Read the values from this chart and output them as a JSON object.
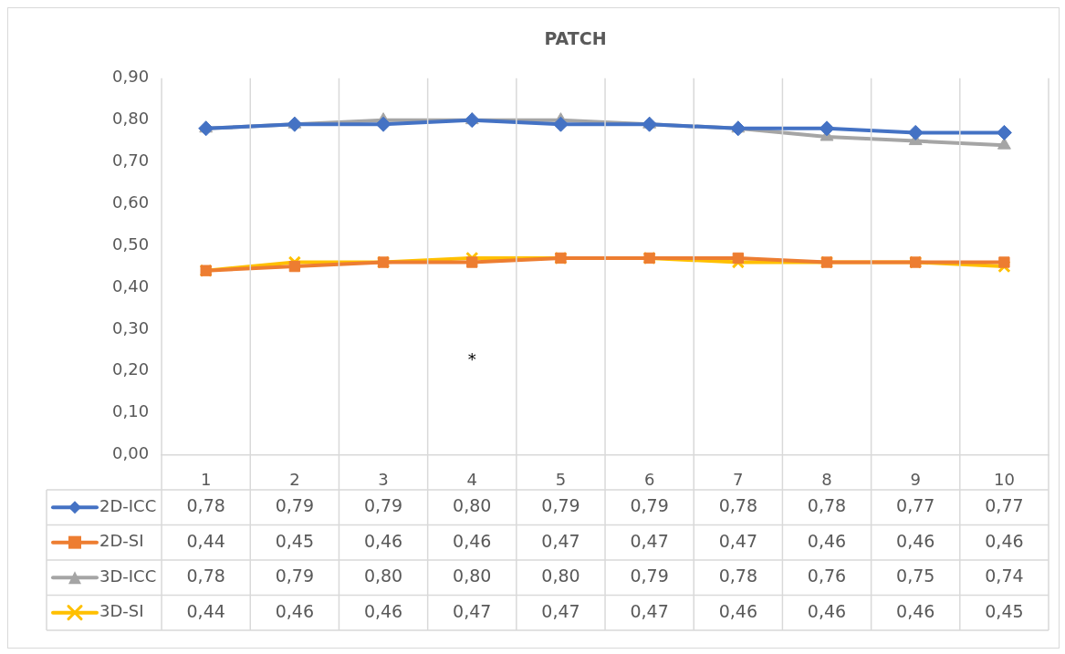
{
  "chart_data": {
    "type": "line",
    "title": "PATCH",
    "categories": [
      "1",
      "2",
      "3",
      "4",
      "5",
      "6",
      "7",
      "8",
      "9",
      "10"
    ],
    "series": [
      {
        "name": "2D-ICC",
        "color": "#4472c4",
        "marker": "diamond",
        "values": [
          0.78,
          0.79,
          0.79,
          0.8,
          0.79,
          0.79,
          0.78,
          0.78,
          0.77,
          0.77
        ],
        "value_labels": [
          "0,78",
          "0,79",
          "0,79",
          "0,80",
          "0,79",
          "0,79",
          "0,78",
          "0,78",
          "0,77",
          "0,77"
        ]
      },
      {
        "name": "2D-SI",
        "color": "#ed7d31",
        "marker": "square",
        "values": [
          0.44,
          0.45,
          0.46,
          0.46,
          0.47,
          0.47,
          0.47,
          0.46,
          0.46,
          0.46
        ],
        "value_labels": [
          "0,44",
          "0,45",
          "0,46",
          "0,46",
          "0,47",
          "0,47",
          "0,47",
          "0,46",
          "0,46",
          "0,46"
        ]
      },
      {
        "name": "3D-ICC",
        "color": "#a5a5a5",
        "marker": "triangle",
        "values": [
          0.78,
          0.79,
          0.8,
          0.8,
          0.8,
          0.79,
          0.78,
          0.76,
          0.75,
          0.74
        ],
        "value_labels": [
          "0,78",
          "0,79",
          "0,80",
          "0,80",
          "0,80",
          "0,79",
          "0,78",
          "0,76",
          "0,75",
          "0,74"
        ]
      },
      {
        "name": "3D-SI",
        "color": "#ffc000",
        "marker": "cross",
        "values": [
          0.44,
          0.46,
          0.46,
          0.47,
          0.47,
          0.47,
          0.46,
          0.46,
          0.46,
          0.45
        ],
        "value_labels": [
          "0,44",
          "0,46",
          "0,46",
          "0,47",
          "0,47",
          "0,47",
          "0,46",
          "0,46",
          "0,46",
          "0,45"
        ]
      }
    ],
    "ylim": [
      0,
      0.9
    ],
    "yticks": [
      {
        "value": 0,
        "label": "0,00"
      },
      {
        "value": 0.1,
        "label": "0,10"
      },
      {
        "value": 0.2,
        "label": "0,20"
      },
      {
        "value": 0.3,
        "label": "0,30"
      },
      {
        "value": 0.4,
        "label": "0,40"
      },
      {
        "value": 0.5,
        "label": "0,50"
      },
      {
        "value": 0.6,
        "label": "0,60"
      },
      {
        "value": 0.7,
        "label": "0,70"
      },
      {
        "value": 0.8,
        "label": "0,80"
      },
      {
        "value": 0.9,
        "label": "0,90"
      }
    ],
    "grid": "x",
    "legend": "bottom",
    "annotations": [
      "*"
    ]
  }
}
